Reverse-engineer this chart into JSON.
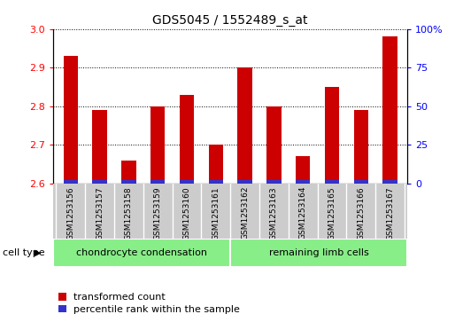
{
  "title": "GDS5045 / 1552489_s_at",
  "samples": [
    "GSM1253156",
    "GSM1253157",
    "GSM1253158",
    "GSM1253159",
    "GSM1253160",
    "GSM1253161",
    "GSM1253162",
    "GSM1253163",
    "GSM1253164",
    "GSM1253165",
    "GSM1253166",
    "GSM1253167"
  ],
  "red_values": [
    2.93,
    2.79,
    2.66,
    2.8,
    2.83,
    2.7,
    2.9,
    2.8,
    2.67,
    2.85,
    2.79,
    2.98
  ],
  "blue_pct": [
    2,
    2,
    2,
    2,
    2,
    2,
    2,
    2,
    2,
    2,
    2,
    2
  ],
  "ylim_left": [
    2.6,
    3.0
  ],
  "ylim_right": [
    0,
    100
  ],
  "yticks_left": [
    2.6,
    2.7,
    2.8,
    2.9,
    3.0
  ],
  "yticks_right": [
    0,
    25,
    50,
    75,
    100
  ],
  "ytick_labels_right": [
    "0",
    "25",
    "50",
    "75",
    "100%"
  ],
  "bar_width": 0.5,
  "red_color": "#cc0000",
  "blue_color": "#3333cc",
  "cell_type_label": "cell type",
  "group1_label": "chondrocyte condensation",
  "group2_label": "remaining limb cells",
  "group1_color": "#88ee88",
  "group2_color": "#88ee88",
  "legend_red": "transformed count",
  "legend_blue": "percentile rank within the sample",
  "xtick_bg_color": "#cccccc",
  "plot_bg": "#ffffff",
  "title_fontsize": 10,
  "axis_fontsize": 8,
  "legend_fontsize": 8
}
